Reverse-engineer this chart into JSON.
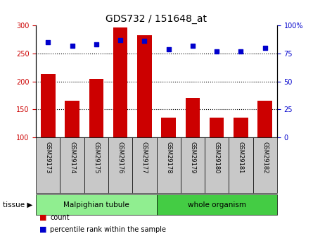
{
  "title": "GDS732 / 151648_at",
  "samples": [
    "GSM29173",
    "GSM29174",
    "GSM29175",
    "GSM29176",
    "GSM29177",
    "GSM29178",
    "GSM29179",
    "GSM29180",
    "GSM29181",
    "GSM29182"
  ],
  "counts": [
    213,
    165,
    205,
    297,
    283,
    135,
    170,
    135,
    135,
    165
  ],
  "percentiles": [
    85,
    82,
    83,
    87,
    86,
    79,
    82,
    77,
    77,
    80
  ],
  "bar_color": "#cc0000",
  "dot_color": "#0000cc",
  "ylim_left": [
    100,
    300
  ],
  "ylim_right": [
    0,
    100
  ],
  "yticks_left": [
    100,
    150,
    200,
    250,
    300
  ],
  "yticks_right": [
    0,
    25,
    50,
    75,
    100
  ],
  "grid_lines": [
    150,
    200,
    250
  ],
  "tissue_groups": [
    {
      "label": "Malpighian tubule",
      "indices": [
        0,
        1,
        2,
        3,
        4
      ],
      "color": "#90ee90"
    },
    {
      "label": "whole organism",
      "indices": [
        5,
        6,
        7,
        8,
        9
      ],
      "color": "#44cc44"
    }
  ],
  "tissue_label": "tissue",
  "legend_count_label": "count",
  "legend_pct_label": "percentile rank within the sample",
  "bar_color_label": "#cc0000",
  "dot_color_label": "#0000cc",
  "tick_bg_color": "#c8c8c8",
  "bar_bottom": 100,
  "bar_width": 0.6,
  "title_fontsize": 10,
  "tick_fontsize": 6,
  "tissue_fontsize": 7.5,
  "legend_fontsize": 7
}
